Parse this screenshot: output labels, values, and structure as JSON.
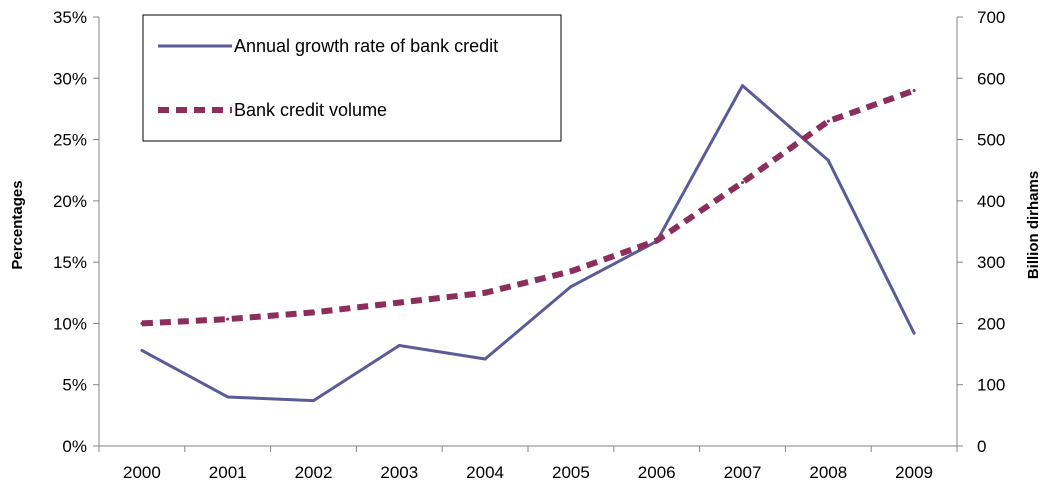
{
  "chart_data": {
    "type": "line",
    "categories": [
      "2000",
      "2001",
      "2002",
      "2003",
      "2004",
      "2005",
      "2006",
      "2007",
      "2008",
      "2009"
    ],
    "series": [
      {
        "name": "Annual growth rate of bank credit",
        "axis": "left",
        "color": "#5b5b9a",
        "style": "solid",
        "values": [
          7.8,
          4.0,
          3.7,
          8.2,
          7.1,
          13.0,
          16.7,
          29.4,
          23.3,
          9.2
        ]
      },
      {
        "name": "Bank credit volume",
        "axis": "right",
        "color": "#8b2e5c",
        "style": "dashed",
        "values": [
          200,
          207,
          218,
          234,
          250,
          285,
          335,
          430,
          530,
          580
        ]
      }
    ],
    "ylabel_left": "Percentages",
    "ylabel_right": "Billion dirhams",
    "ylim_left": [
      0,
      35
    ],
    "ylim_right": [
      0,
      700
    ],
    "yticks_left": [
      "0%",
      "5%",
      "10%",
      "15%",
      "20%",
      "25%",
      "30%",
      "35%"
    ],
    "yticks_right": [
      "0",
      "100",
      "200",
      "300",
      "400",
      "500",
      "600",
      "700"
    ],
    "grid": false,
    "legend_position": "top-left"
  }
}
